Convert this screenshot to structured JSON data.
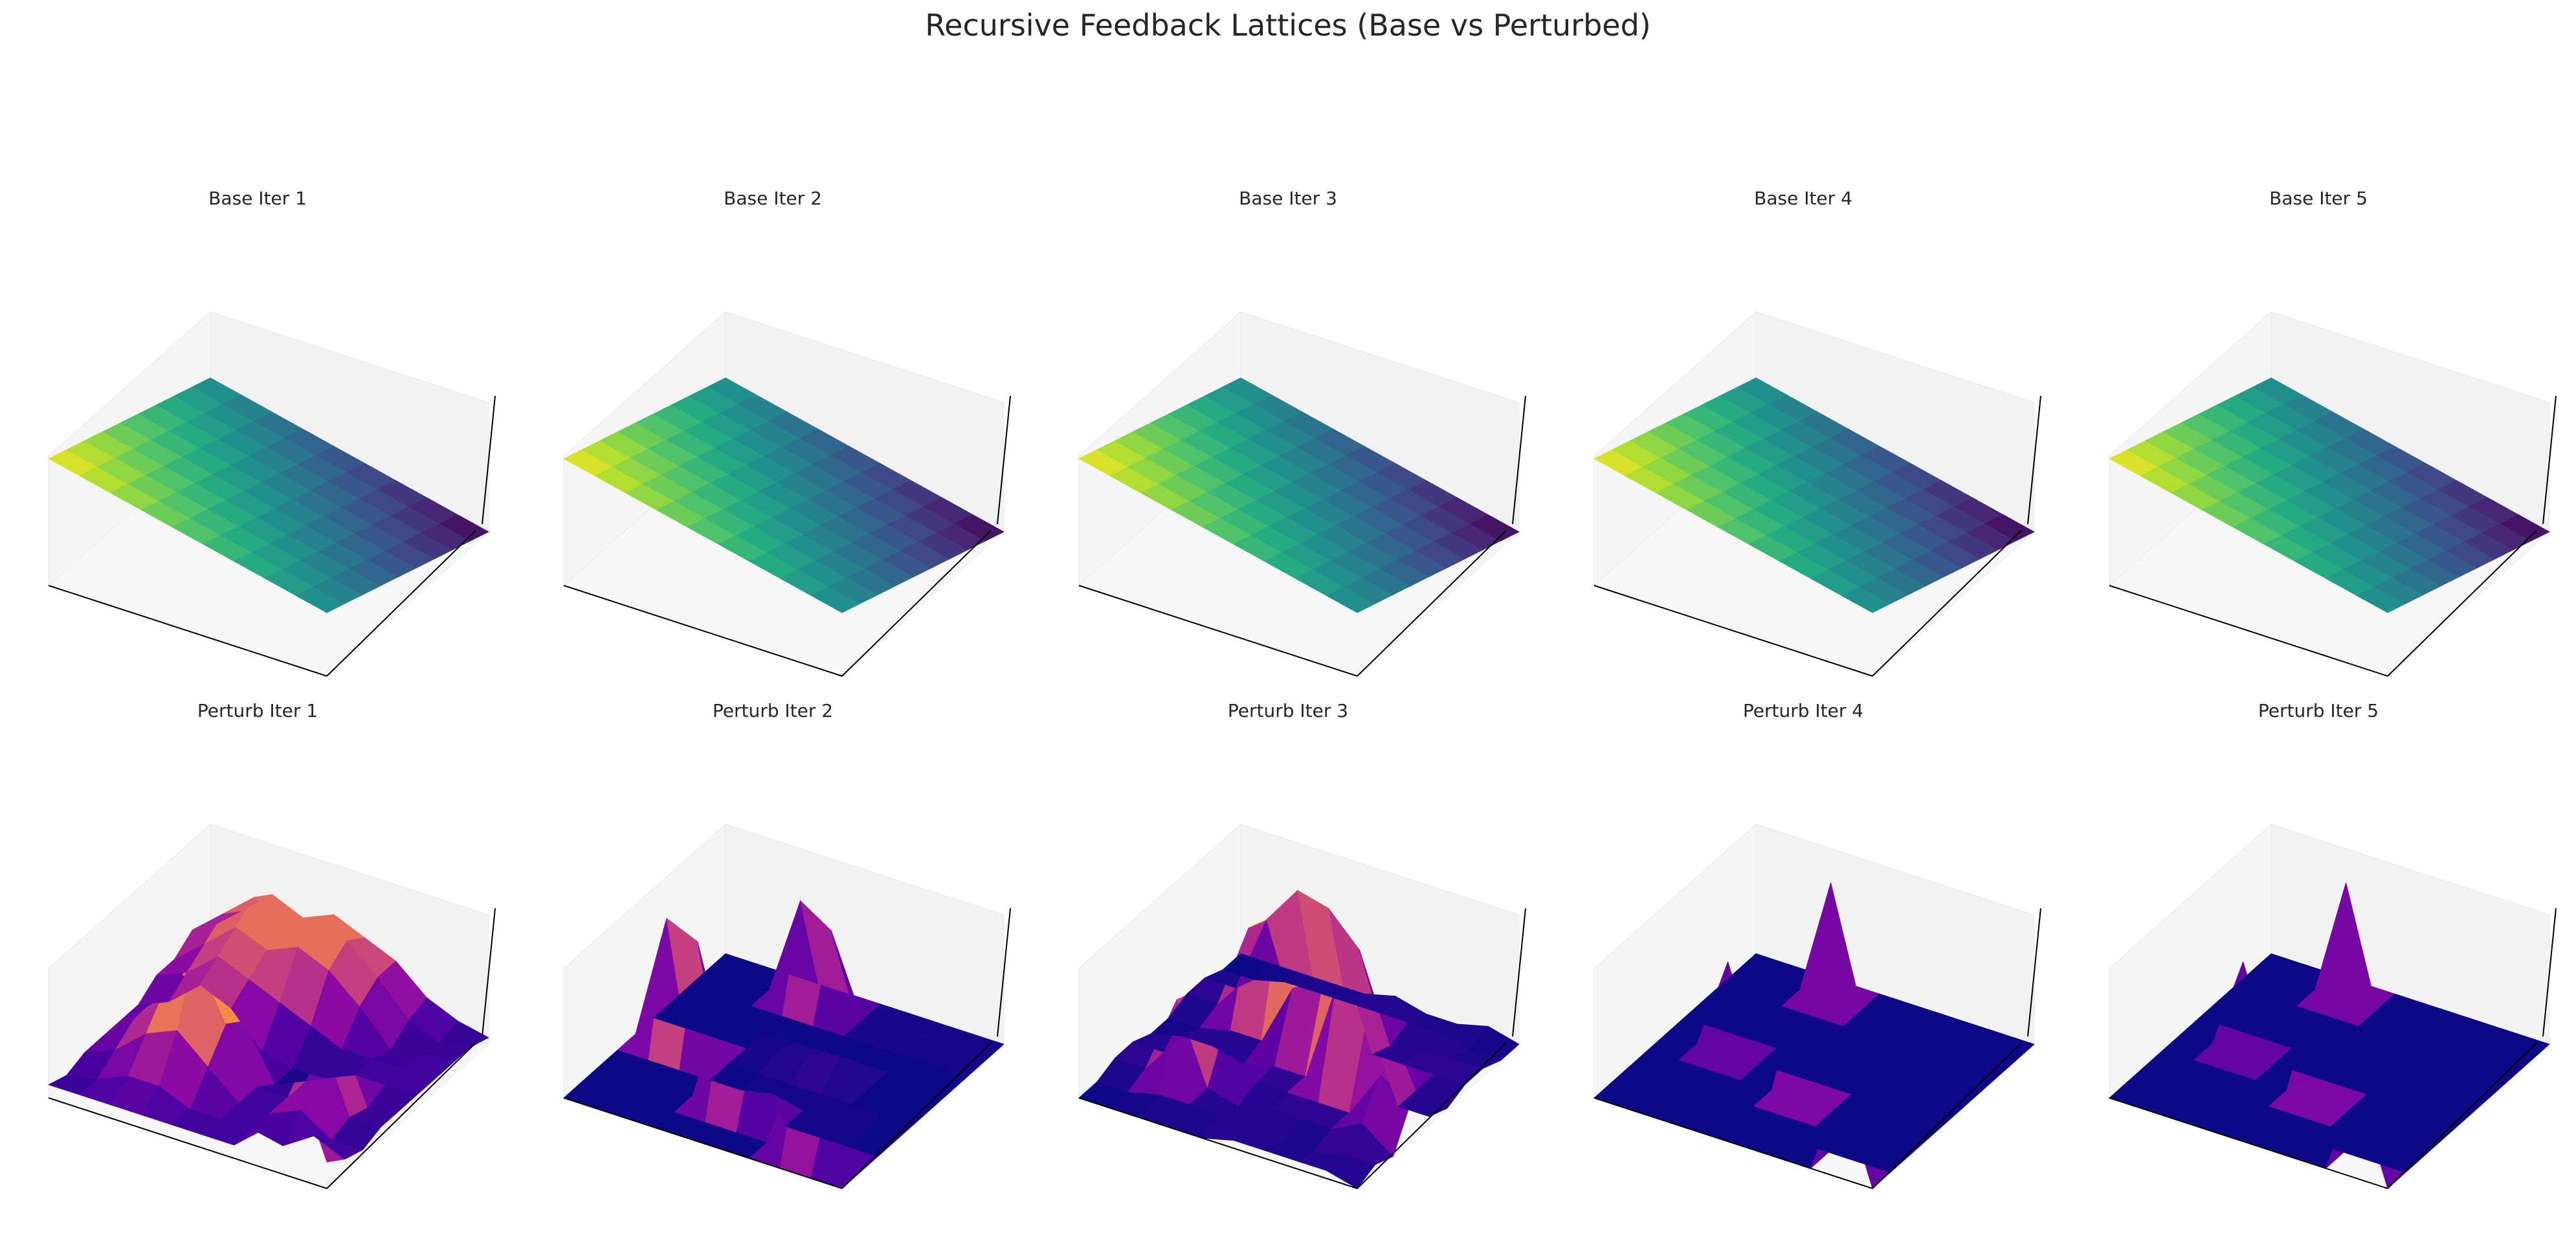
{
  "figure": {
    "title": "Recursive Feedback Lattices (Base vs Perturbed)"
  },
  "colors": {
    "base_colormap": "viridis",
    "perturbed_colormap": "plasma",
    "pane": "#f2f2f2",
    "axis_line": "#000000"
  },
  "chart_data": [
    {
      "type": "surface3d",
      "title": "Base Iter 1",
      "colormap": "viridis",
      "grid": false,
      "axis_ticks": false,
      "description_values": "z = x + y on 10x10 lattice",
      "z": [
        [
          0,
          1,
          2,
          3,
          4,
          5,
          6,
          7,
          8,
          9
        ],
        [
          1,
          2,
          3,
          4,
          5,
          6,
          7,
          8,
          9,
          10
        ],
        [
          2,
          3,
          4,
          5,
          6,
          7,
          8,
          9,
          10,
          11
        ],
        [
          3,
          4,
          5,
          6,
          7,
          8,
          9,
          10,
          11,
          12
        ],
        [
          4,
          5,
          6,
          7,
          8,
          9,
          10,
          11,
          12,
          13
        ],
        [
          5,
          6,
          7,
          8,
          9,
          10,
          11,
          12,
          13,
          14
        ],
        [
          6,
          7,
          8,
          9,
          10,
          11,
          12,
          13,
          14,
          15
        ],
        [
          7,
          8,
          9,
          10,
          11,
          12,
          13,
          14,
          15,
          16
        ],
        [
          8,
          9,
          10,
          11,
          12,
          13,
          14,
          15,
          16,
          17
        ],
        [
          9,
          10,
          11,
          12,
          13,
          14,
          15,
          16,
          17,
          18
        ]
      ]
    },
    {
      "type": "surface3d",
      "title": "Base Iter 2",
      "colormap": "viridis",
      "grid": false,
      "axis_ticks": false,
      "z": [
        [
          0,
          1,
          2,
          3,
          4,
          5,
          6,
          7,
          8,
          9
        ],
        [
          1,
          2,
          3,
          4,
          5,
          6,
          7,
          8,
          9,
          10
        ],
        [
          2,
          3,
          4,
          5,
          6,
          7,
          8,
          9,
          10,
          11
        ],
        [
          3,
          4,
          5,
          6,
          7,
          8,
          9,
          10,
          11,
          12
        ],
        [
          4,
          5,
          6,
          7,
          8,
          9,
          10,
          11,
          12,
          13
        ],
        [
          5,
          6,
          7,
          8,
          9,
          10,
          11,
          12,
          13,
          14
        ],
        [
          6,
          7,
          8,
          9,
          10,
          11,
          12,
          13,
          14,
          15
        ],
        [
          7,
          8,
          9,
          10,
          11,
          12,
          13,
          14,
          15,
          16
        ],
        [
          8,
          9,
          10,
          11,
          12,
          13,
          14,
          15,
          16,
          17
        ],
        [
          9,
          10,
          11,
          12,
          13,
          14,
          15,
          16,
          17,
          18
        ]
      ]
    },
    {
      "type": "surface3d",
      "title": "Base Iter 3",
      "colormap": "viridis",
      "grid": false,
      "axis_ticks": false,
      "z": [
        [
          0,
          1,
          2,
          3,
          4,
          5,
          6,
          7,
          8,
          9
        ],
        [
          1,
          2,
          3,
          4,
          5,
          6,
          7,
          8,
          9,
          10
        ],
        [
          2,
          3,
          4,
          5,
          6,
          7,
          8,
          9,
          10,
          11
        ],
        [
          3,
          4,
          5,
          6,
          7,
          8,
          9,
          10,
          11,
          12
        ],
        [
          4,
          5,
          6,
          7,
          8,
          9,
          10,
          11,
          12,
          13
        ],
        [
          5,
          6,
          7,
          8,
          9,
          10,
          11,
          12,
          13,
          14
        ],
        [
          6,
          7,
          8,
          9,
          10,
          11,
          12,
          13,
          14,
          15
        ],
        [
          7,
          8,
          9,
          10,
          11,
          12,
          13,
          14,
          15,
          16
        ],
        [
          8,
          9,
          10,
          11,
          12,
          13,
          14,
          15,
          16,
          17
        ],
        [
          9,
          10,
          11,
          12,
          13,
          14,
          15,
          16,
          17,
          18
        ]
      ]
    },
    {
      "type": "surface3d",
      "title": "Base Iter 4",
      "colormap": "viridis",
      "grid": false,
      "axis_ticks": false,
      "z": [
        [
          0,
          1,
          2,
          3,
          4,
          5,
          6,
          7,
          8,
          9
        ],
        [
          1,
          2,
          3,
          4,
          5,
          6,
          7,
          8,
          9,
          10
        ],
        [
          2,
          3,
          4,
          5,
          6,
          7,
          8,
          9,
          10,
          11
        ],
        [
          3,
          4,
          5,
          6,
          7,
          8,
          9,
          10,
          11,
          12
        ],
        [
          4,
          5,
          6,
          7,
          8,
          9,
          10,
          11,
          12,
          13
        ],
        [
          5,
          6,
          7,
          8,
          9,
          10,
          11,
          12,
          13,
          14
        ],
        [
          6,
          7,
          8,
          9,
          10,
          11,
          12,
          13,
          14,
          15
        ],
        [
          7,
          8,
          9,
          10,
          11,
          12,
          13,
          14,
          15,
          16
        ],
        [
          8,
          9,
          10,
          11,
          12,
          13,
          14,
          15,
          16,
          17
        ],
        [
          9,
          10,
          11,
          12,
          13,
          14,
          15,
          16,
          17,
          18
        ]
      ]
    },
    {
      "type": "surface3d",
      "title": "Base Iter 5",
      "colormap": "viridis",
      "grid": false,
      "axis_ticks": false,
      "z": [
        [
          0,
          1,
          2,
          3,
          4,
          5,
          6,
          7,
          8,
          9
        ],
        [
          1,
          2,
          3,
          4,
          5,
          6,
          7,
          8,
          9,
          10
        ],
        [
          2,
          3,
          4,
          5,
          6,
          7,
          8,
          9,
          10,
          11
        ],
        [
          3,
          4,
          5,
          6,
          7,
          8,
          9,
          10,
          11,
          12
        ],
        [
          4,
          5,
          6,
          7,
          8,
          9,
          10,
          11,
          12,
          13
        ],
        [
          5,
          6,
          7,
          8,
          9,
          10,
          11,
          12,
          13,
          14
        ],
        [
          6,
          7,
          8,
          9,
          10,
          11,
          12,
          13,
          14,
          15
        ],
        [
          7,
          8,
          9,
          10,
          11,
          12,
          13,
          14,
          15,
          16
        ],
        [
          8,
          9,
          10,
          11,
          12,
          13,
          14,
          15,
          16,
          17
        ],
        [
          9,
          10,
          11,
          12,
          13,
          14,
          15,
          16,
          17,
          18
        ]
      ]
    },
    {
      "type": "surface3d",
      "title": "Perturb Iter 1",
      "colormap": "plasma",
      "grid": false,
      "axis_ticks": false,
      "z": [
        [
          0.05,
          0.1,
          0.1,
          0.1,
          0.1,
          0.1,
          0.1,
          0.05,
          0.1,
          0.2
        ],
        [
          0.1,
          0.05,
          0.1,
          0.1,
          0.1,
          0.05,
          0.1,
          0.05,
          0.2,
          0.8
        ],
        [
          0.2,
          0.15,
          0.05,
          0.1,
          0.1,
          0.6,
          0.7,
          0.2,
          0.05,
          0.3
        ],
        [
          0.4,
          0.4,
          0.3,
          0.1,
          0.0,
          0.1,
          0.1,
          0.1,
          0.1,
          0.1
        ],
        [
          0.5,
          0.6,
          0.5,
          0.2,
          0.0,
          0.0,
          0.1,
          0.1,
          0.1,
          0.1
        ],
        [
          0.6,
          0.7,
          0.6,
          0.3,
          0.05,
          0.4,
          0.5,
          0.3,
          0.1,
          0.1
        ],
        [
          0.5,
          0.6,
          0.5,
          0.4,
          0.3,
          0.9,
          0.95,
          0.5,
          0.2,
          0.1
        ],
        [
          0.6,
          0.7,
          0.6,
          0.5,
          0.4,
          0.6,
          0.6,
          0.4,
          0.2,
          0.1
        ],
        [
          0.4,
          0.5,
          0.4,
          0.3,
          0.2,
          0.3,
          0.3,
          0.2,
          0.1,
          0.1
        ],
        [
          0.2,
          0.3,
          0.2,
          0.2,
          0.1,
          0.1,
          0.1,
          0.1,
          0.05,
          0.1
        ]
      ]
    },
    {
      "type": "surface3d",
      "title": "Perturb Iter 2",
      "colormap": "plasma",
      "grid": false,
      "axis_ticks": false,
      "z": [
        [
          0,
          0,
          0,
          0,
          0,
          0,
          0,
          0,
          0,
          0
        ],
        [
          0,
          0.05,
          0,
          0,
          0,
          0,
          0,
          0,
          0.5,
          0
        ],
        [
          0,
          0,
          0,
          0,
          0,
          0,
          0.05,
          0,
          0.7,
          0
        ],
        [
          0,
          0.1,
          0,
          0,
          0.15,
          0,
          0,
          0,
          0,
          0
        ],
        [
          0,
          0,
          0,
          0,
          0.1,
          0,
          0.05,
          0.55,
          0,
          0
        ],
        [
          0,
          0.6,
          0,
          0,
          0.05,
          0,
          0,
          0.8,
          0,
          0
        ],
        [
          0,
          0.75,
          0,
          0,
          0,
          0,
          0,
          0,
          0,
          0
        ],
        [
          0,
          0,
          0,
          0,
          0,
          0.85,
          0,
          0,
          0,
          0
        ],
        [
          0,
          0,
          0,
          0,
          0,
          0.95,
          0,
          0,
          0,
          0
        ],
        [
          0,
          0,
          0,
          0,
          0,
          0,
          0,
          0,
          0,
          0
        ]
      ]
    },
    {
      "type": "surface3d",
      "title": "Perturb Iter 3",
      "colormap": "plasma",
      "grid": false,
      "axis_ticks": false,
      "z": [
        [
          0.05,
          0.05,
          0.1,
          0.1,
          0.05,
          0.1,
          0.3,
          0.05,
          0.1,
          0.05
        ],
        [
          0.1,
          0.05,
          0.1,
          0.1,
          0.1,
          0.1,
          0.4,
          0.2,
          0.1,
          0.1
        ],
        [
          0.05,
          0.1,
          0.1,
          0.1,
          0.5,
          0.6,
          0.1,
          0.1,
          0.05,
          0.1
        ],
        [
          0.05,
          0.1,
          0.05,
          0.1,
          0.65,
          0.75,
          0.1,
          0.1,
          0.05,
          0.1
        ],
        [
          0.1,
          0.1,
          0.6,
          0.65,
          0.6,
          0.1,
          0.1,
          0.1,
          0.1,
          0.1
        ],
        [
          0.05,
          0.1,
          0.8,
          0.75,
          0.5,
          0.1,
          0.1,
          0.05,
          0.1,
          0.05
        ],
        [
          0.05,
          0.1,
          0.85,
          0.8,
          0.1,
          0.05,
          0.4,
          0.1,
          0.1,
          0.05
        ],
        [
          0.05,
          0.1,
          0.6,
          0.65,
          0.1,
          0.1,
          0.55,
          0.6,
          0.1,
          0.05
        ],
        [
          0.05,
          0.05,
          0.1,
          0.1,
          0.05,
          0.1,
          0.1,
          0.1,
          0.05,
          0.05
        ],
        [
          0.05,
          0.05,
          0.1,
          0.1,
          0.05,
          0.05,
          0.1,
          0.1,
          0.05,
          0.05
        ]
      ]
    },
    {
      "type": "surface3d",
      "title": "Perturb Iter 4",
      "colormap": "plasma",
      "grid": false,
      "axis_ticks": false,
      "z": [
        [
          0,
          0,
          0,
          0,
          0,
          0,
          0,
          0,
          0,
          0
        ],
        [
          0,
          0,
          0,
          0,
          0,
          0,
          0,
          0,
          0,
          0.55
        ],
        [
          0,
          0,
          0,
          0,
          0,
          0,
          0,
          0,
          0,
          0
        ],
        [
          0,
          0,
          0,
          0,
          0,
          0,
          0,
          0,
          0,
          0
        ],
        [
          0,
          0,
          0,
          0,
          0,
          0,
          0.75,
          0,
          0,
          0
        ],
        [
          0,
          0,
          0,
          0,
          0,
          0,
          0,
          0,
          0,
          0
        ],
        [
          0,
          0.7,
          0,
          0,
          0,
          0,
          0,
          0,
          0,
          0
        ],
        [
          0,
          0,
          0,
          0,
          0,
          0.55,
          0,
          0,
          0,
          0
        ],
        [
          0,
          0,
          0,
          0,
          0,
          0,
          0,
          0,
          0,
          0
        ],
        [
          0,
          0,
          0,
          0,
          0,
          0,
          0,
          0,
          0,
          0
        ]
      ]
    },
    {
      "type": "surface3d",
      "title": "Perturb Iter 5",
      "colormap": "plasma",
      "grid": false,
      "axis_ticks": false,
      "z": [
        [
          0,
          0,
          0,
          0,
          0,
          0,
          0,
          0,
          0,
          0
        ],
        [
          0,
          0,
          0,
          0,
          0,
          0,
          0,
          0,
          0,
          0.55
        ],
        [
          0,
          0,
          0,
          0,
          0,
          0,
          0,
          0,
          0,
          0
        ],
        [
          0,
          0,
          0,
          0,
          0,
          0,
          0,
          0,
          0,
          0
        ],
        [
          0,
          0,
          0,
          0,
          0,
          0,
          0.75,
          0,
          0,
          0
        ],
        [
          0,
          0,
          0,
          0,
          0,
          0,
          0,
          0,
          0,
          0
        ],
        [
          0,
          0.7,
          0,
          0,
          0,
          0,
          0,
          0,
          0,
          0
        ],
        [
          0,
          0,
          0,
          0,
          0,
          0.55,
          0,
          0,
          0,
          0
        ],
        [
          0,
          0,
          0,
          0,
          0,
          0,
          0,
          0,
          0,
          0
        ],
        [
          0,
          0,
          0,
          0,
          0,
          0,
          0,
          0,
          0,
          0
        ]
      ]
    }
  ]
}
